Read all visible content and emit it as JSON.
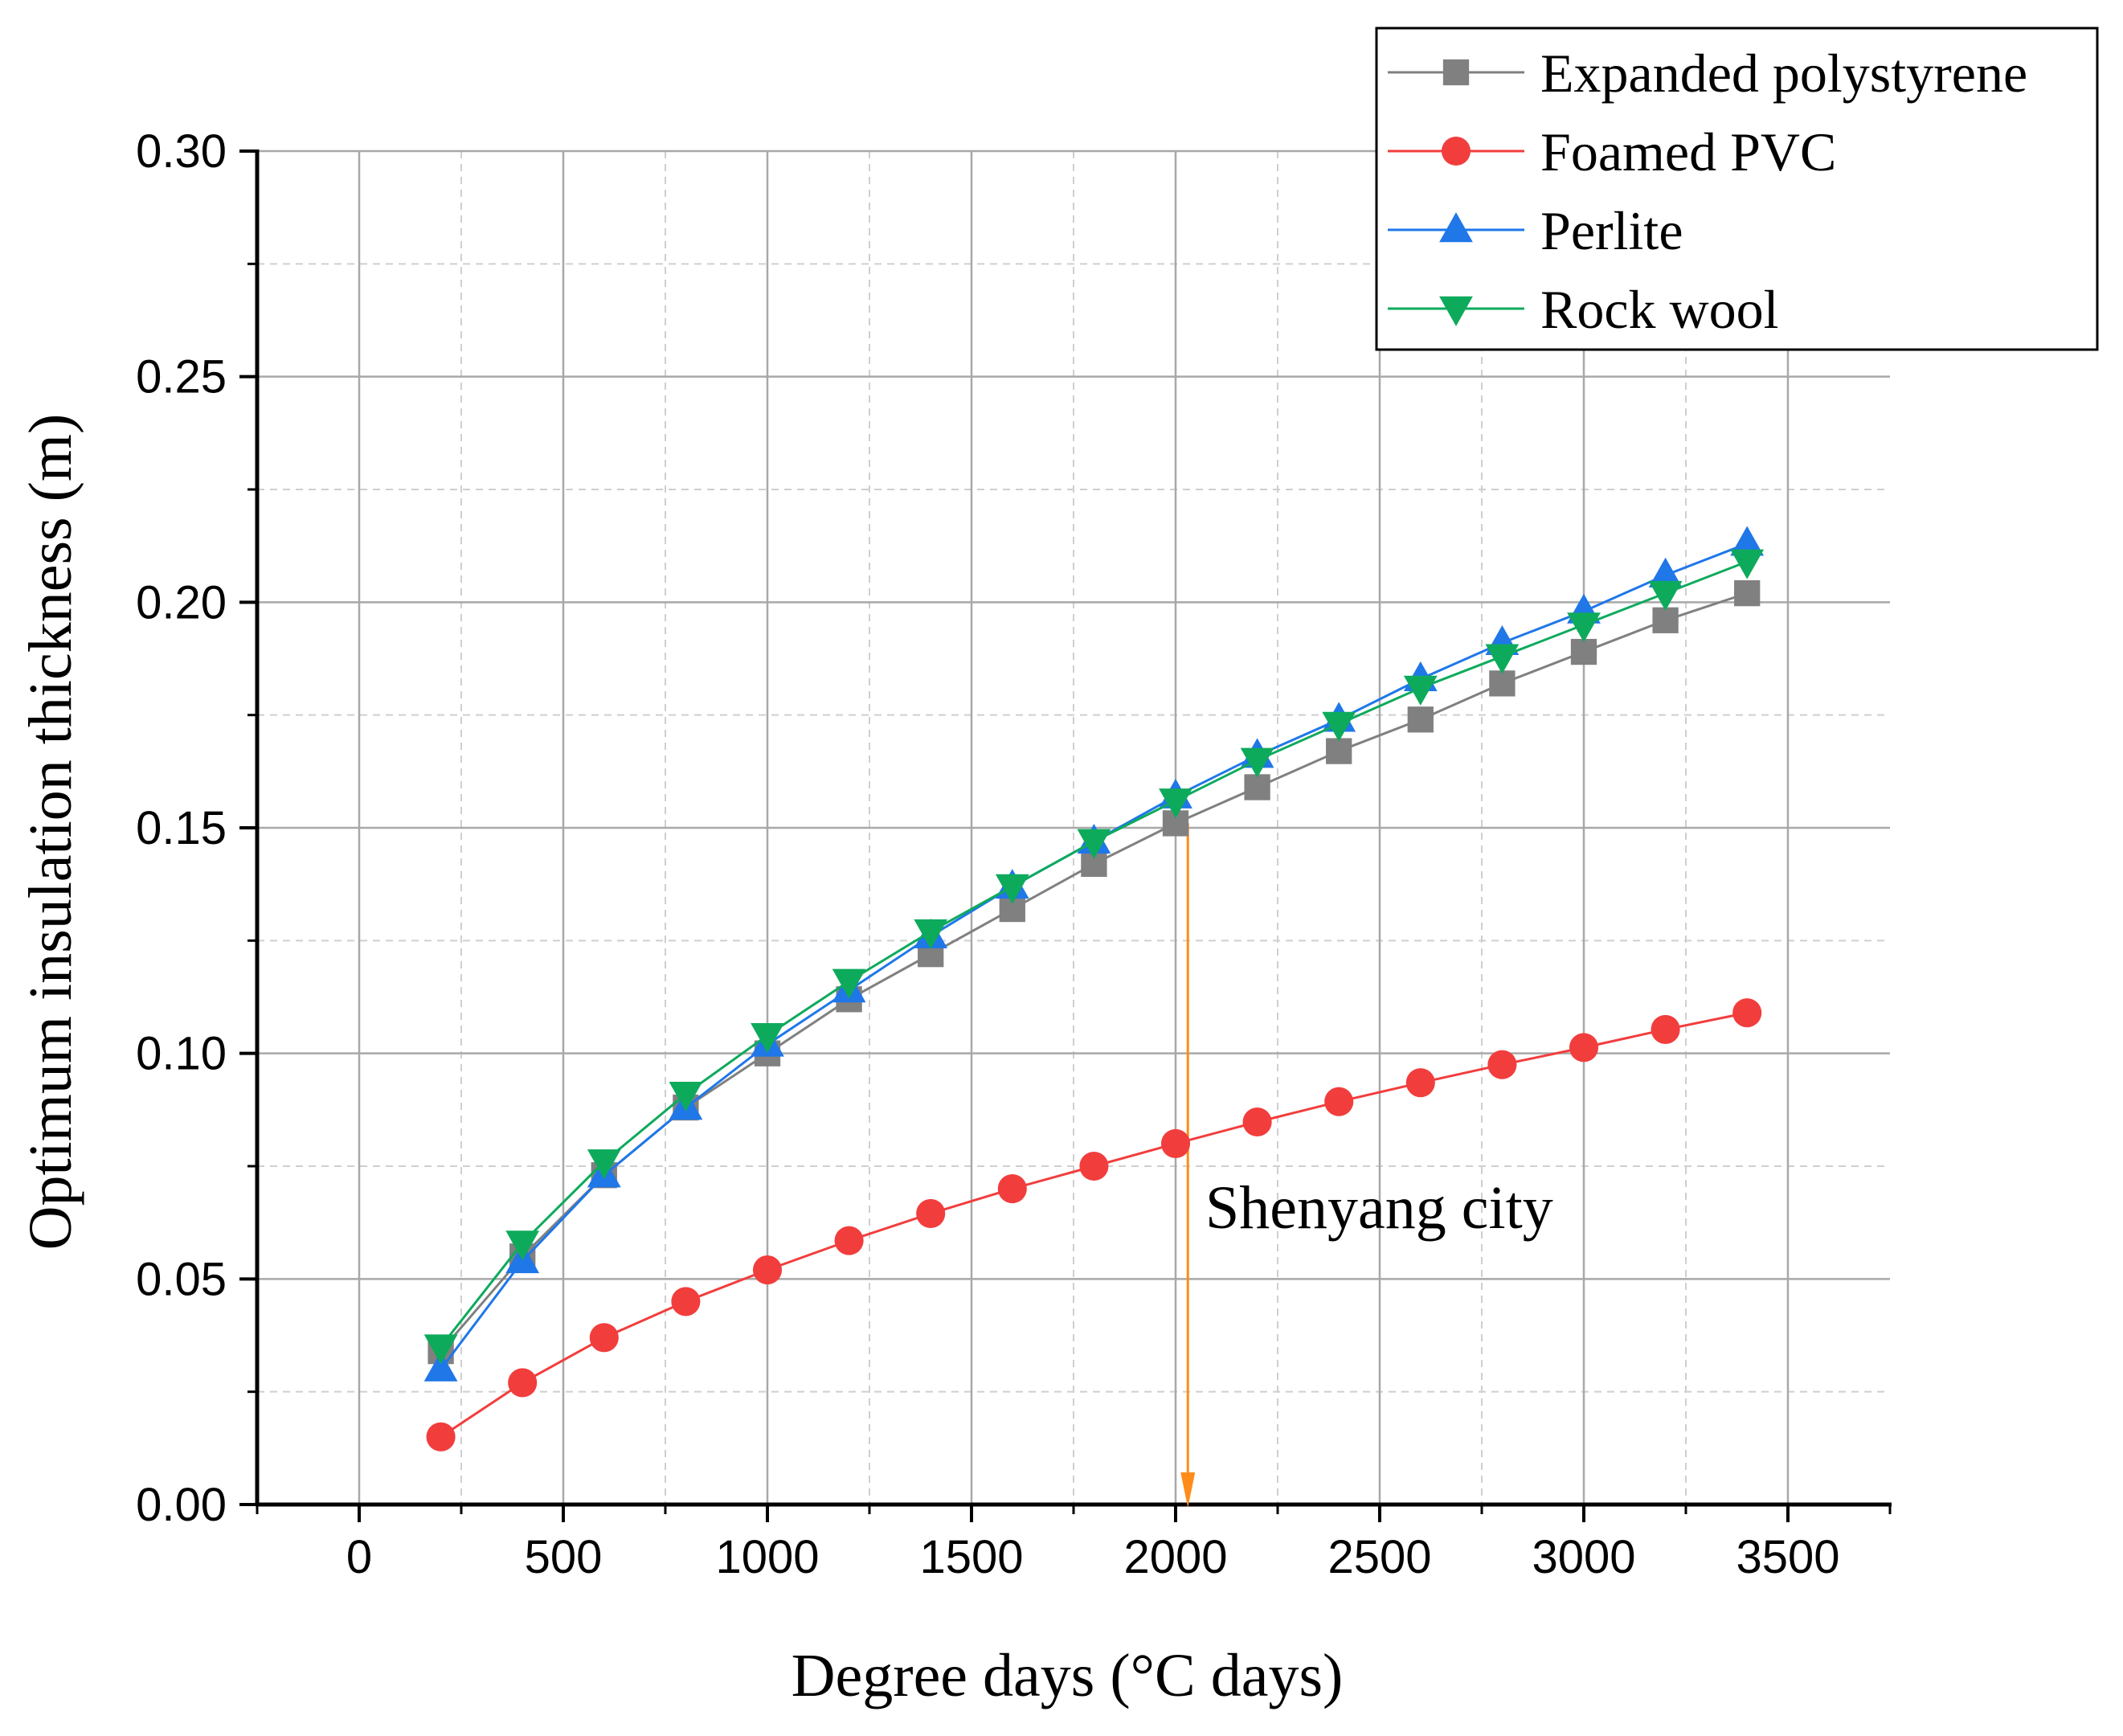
{
  "chart_data": {
    "type": "line",
    "xlabel": "Degree days (°C days)",
    "ylabel": "Optimum insulation thickness (m)",
    "xlim": [
      -250,
      3750
    ],
    "ylim": [
      0,
      0.3
    ],
    "xticks": [
      0,
      500,
      1000,
      1500,
      2000,
      2500,
      3000,
      3500
    ],
    "xtick_labels": [
      "0",
      "500",
      "1000",
      "1500",
      "2000",
      "2500",
      "3000",
      "3500"
    ],
    "yticks": [
      0,
      0.05,
      0.1,
      0.15,
      0.2,
      0.25,
      0.3
    ],
    "ytick_labels": [
      "0.00",
      "0.05",
      "0.10",
      "0.15",
      "0.20",
      "0.25",
      "0.30"
    ],
    "grid": true,
    "legend_position": "top-right",
    "x": [
      200,
      400,
      600,
      800,
      1000,
      1200,
      1400,
      1600,
      1800,
      2000,
      2200,
      2400,
      2600,
      2800,
      3000,
      3200,
      3400
    ],
    "series": [
      {
        "name": "Expanded polystyrene",
        "marker": "square",
        "color": "#808080",
        "values": [
          0.034,
          0.055,
          0.073,
          0.088,
          0.1,
          0.112,
          0.122,
          0.132,
          0.142,
          0.151,
          0.159,
          0.167,
          0.174,
          0.182,
          0.189,
          0.196,
          0.202
        ]
      },
      {
        "name": "Foamed PVC",
        "marker": "circle",
        "color": "#f23d3d",
        "values": [
          0.015,
          0.027,
          0.037,
          0.045,
          0.052,
          0.0585,
          0.0645,
          0.07,
          0.075,
          0.08,
          0.0848,
          0.0893,
          0.0935,
          0.0975,
          0.1013,
          0.1053,
          0.109
        ]
      },
      {
        "name": "Perlite",
        "marker": "triangle-up",
        "color": "#1f77e8",
        "values": [
          0.03,
          0.054,
          0.073,
          0.088,
          0.102,
          0.114,
          0.126,
          0.137,
          0.147,
          0.157,
          0.166,
          0.174,
          0.183,
          0.191,
          0.198,
          0.206,
          0.213
        ]
      },
      {
        "name": "Rock wool",
        "marker": "triangle-down",
        "color": "#0eaa5c",
        "values": [
          0.035,
          0.058,
          0.076,
          0.091,
          0.104,
          0.116,
          0.127,
          0.137,
          0.147,
          0.156,
          0.165,
          0.173,
          0.181,
          0.188,
          0.195,
          0.202,
          0.209
        ]
      }
    ],
    "annotation": {
      "text": "Shenyang city",
      "x": 2030,
      "y_from": 0.151,
      "y_to": 0,
      "color": "#ff8c1a"
    }
  }
}
